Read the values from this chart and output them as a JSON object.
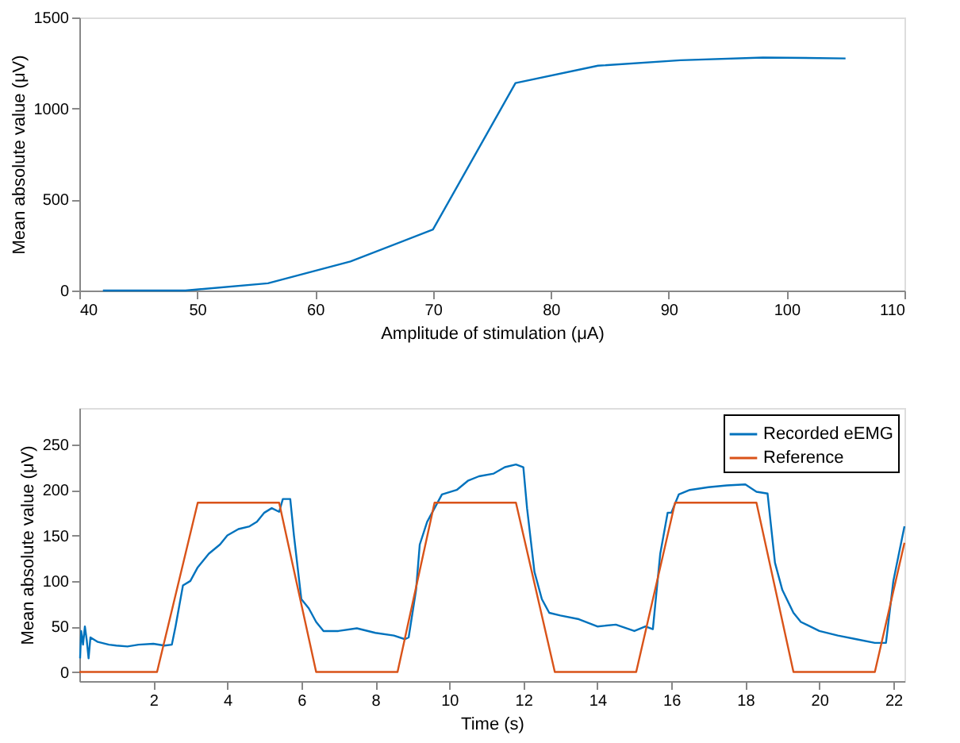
{
  "chart_data": [
    {
      "type": "line",
      "xlabel": "Amplitude of stimulation (μA)",
      "ylabel": "Mean absolute value (μV)",
      "xlim": [
        40,
        110
      ],
      "xticks": [
        40,
        50,
        60,
        70,
        80,
        90,
        100,
        110
      ],
      "ylim": [
        0,
        1500
      ],
      "yticks": [
        0,
        500,
        1000,
        1500
      ],
      "grid": false,
      "legend": false,
      "series": [
        {
          "color": "#0072bd",
          "x": [
            42,
            49,
            56,
            63,
            70,
            77,
            84,
            91,
            98,
            105
          ],
          "values": [
            0,
            0,
            40,
            160,
            335,
            1140,
            1235,
            1265,
            1280,
            1275
          ]
        }
      ]
    },
    {
      "type": "line",
      "xlabel": "Time (s)",
      "ylabel": "Mean absolute value (μV)",
      "xlim": [
        0,
        22.3
      ],
      "xticks": [
        2,
        4,
        6,
        8,
        10,
        12,
        14,
        16,
        18,
        20,
        22
      ],
      "ylim": [
        -10,
        290
      ],
      "yticks": [
        0,
        50,
        100,
        150,
        200,
        250
      ],
      "grid": false,
      "legend": "top right",
      "series": [
        {
          "name": "Recorded eEMG",
          "color": "#0072bd",
          "x": [
            0.02,
            0.05,
            0.1,
            0.15,
            0.2,
            0.25,
            0.3,
            0.5,
            0.8,
            1.0,
            1.3,
            1.6,
            2.0,
            2.3,
            2.5,
            2.6,
            2.8,
            3.0,
            3.2,
            3.5,
            3.8,
            4.0,
            4.3,
            4.6,
            4.8,
            5.0,
            5.2,
            5.4,
            5.5,
            5.7,
            5.8,
            6.0,
            6.2,
            6.4,
            6.6,
            7.0,
            7.5,
            8.0,
            8.5,
            8.8,
            8.9,
            9.1,
            9.2,
            9.4,
            9.6,
            9.8,
            10.2,
            10.5,
            10.8,
            11.2,
            11.5,
            11.8,
            12.0,
            12.1,
            12.3,
            12.5,
            12.7,
            13.0,
            13.5,
            14.0,
            14.5,
            15.0,
            15.3,
            15.5,
            15.7,
            15.9,
            16.0,
            16.2,
            16.5,
            17.0,
            17.5,
            18.0,
            18.3,
            18.6,
            18.8,
            19.0,
            19.3,
            19.5,
            20.0,
            20.5,
            21.0,
            21.5,
            21.8,
            22.0,
            22.3
          ],
          "values": [
            15,
            45,
            30,
            50,
            35,
            15,
            38,
            33,
            30,
            29,
            28,
            30,
            31,
            29,
            30,
            50,
            95,
            100,
            115,
            130,
            140,
            150,
            157,
            160,
            165,
            175,
            180,
            176,
            190,
            190,
            150,
            80,
            70,
            55,
            45,
            45,
            48,
            43,
            40,
            36,
            38,
            90,
            140,
            165,
            180,
            195,
            200,
            210,
            215,
            218,
            225,
            228,
            225,
            180,
            110,
            80,
            65,
            62,
            58,
            50,
            52,
            45,
            50,
            47,
            130,
            175,
            175,
            195,
            200,
            203,
            205,
            206,
            198,
            196,
            120,
            90,
            65,
            55,
            45,
            40,
            36,
            32,
            32,
            100,
            160
          ]
        },
        {
          "name": "Reference",
          "color": "#d95319",
          "x": [
            0,
            2.1,
            3.2,
            5.4,
            6.4,
            8.6,
            9.6,
            11.8,
            12.85,
            15.05,
            16.1,
            18.3,
            19.3,
            21.5,
            22.3
          ],
          "values": [
            0,
            0,
            186,
            186,
            0,
            0,
            186,
            186,
            0,
            0,
            186,
            186,
            0,
            0,
            142
          ]
        }
      ]
    }
  ]
}
